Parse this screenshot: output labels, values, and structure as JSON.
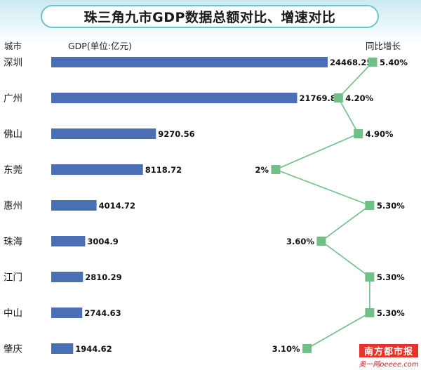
{
  "title": "珠三角九市GDP数据总额对比、增速对比",
  "header": {
    "city": "城市",
    "gdp": "GDP(单位:亿元)",
    "growth": "同比增长"
  },
  "chart_data": {
    "type": "bar",
    "title": "珠三角九市GDP数据总额对比、增速对比",
    "xlabel": "",
    "ylabel": "",
    "categories": [
      "深圳",
      "广州",
      "佛山",
      "东莞",
      "惠州",
      "珠海",
      "江门",
      "中山",
      "肇庆"
    ],
    "series": [
      {
        "name": "GDP(单位:亿元)",
        "values": [
          24468.25,
          21769.84,
          9270.56,
          8118.72,
          4014.72,
          3004.9,
          2810.29,
          2744.63,
          1944.62
        ]
      },
      {
        "name": "同比增长",
        "values": [
          5.4,
          4.2,
          4.9,
          2.0,
          5.3,
          3.6,
          5.3,
          5.3,
          3.1
        ]
      }
    ],
    "value_labels": [
      "24468.25",
      "21769.84",
      "9270.56",
      "8118.72",
      "4014.72",
      "3004.9",
      "2810.29",
      "2744.63",
      "1944.62"
    ],
    "growth_labels": [
      "5.40%",
      "4.20%",
      "4.90%",
      "2%",
      "5.30%",
      "3.60%",
      "5.30%",
      "5.30%",
      "3.10%"
    ],
    "growth_range": [
      2.0,
      5.4
    ],
    "grid": false,
    "legend": "none",
    "colors": {
      "bar": "#4a6fb4",
      "marker": "#6fbf86",
      "line": "#6fbf86"
    }
  },
  "watermark": {
    "main": "南方都市报",
    "sub": "奥一网oeeee.com"
  }
}
